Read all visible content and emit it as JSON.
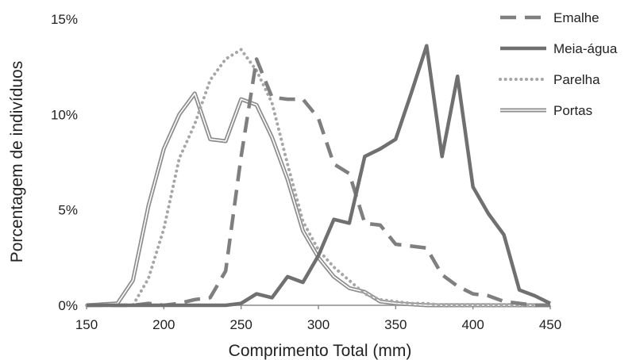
{
  "chart_data": {
    "type": "line",
    "title": "",
    "xlabel": "Comprimento Total (mm)",
    "ylabel": "Porcentagem de indivíduos",
    "xlim": [
      150,
      450
    ],
    "ylim": [
      0,
      15
    ],
    "xticks": [
      150,
      200,
      250,
      300,
      350,
      400,
      450
    ],
    "xtick_labels": [
      "150",
      "200",
      "250",
      "300",
      "350",
      "400",
      "450"
    ],
    "yticks": [
      0,
      5,
      10,
      15
    ],
    "ytick_labels": [
      "0%",
      "5%",
      "10%",
      "15%"
    ],
    "grid": false,
    "legend": {
      "position": "top-right"
    },
    "x": [
      150,
      160,
      170,
      180,
      190,
      200,
      210,
      220,
      230,
      240,
      250,
      260,
      270,
      280,
      290,
      300,
      310,
      320,
      330,
      340,
      350,
      360,
      370,
      380,
      390,
      400,
      410,
      420,
      430,
      440,
      450
    ],
    "series": [
      {
        "name": "Emalhe",
        "style": "dashed",
        "color": "#7f7f7f",
        "values": [
          0,
          0,
          0,
          0,
          0.1,
          0,
          0.1,
          0.3,
          0.4,
          1.8,
          7.8,
          12.9,
          10.9,
          10.8,
          10.8,
          9.8,
          7.4,
          6.9,
          4.3,
          4.2,
          3.2,
          3.1,
          3.0,
          1.6,
          1.0,
          0.6,
          0.5,
          0.2,
          0.1,
          0,
          0
        ]
      },
      {
        "name": "Meia-água",
        "style": "solid",
        "color": "#707070",
        "values": [
          0,
          0,
          0,
          0,
          0,
          0,
          0,
          0,
          0,
          0,
          0.1,
          0.6,
          0.4,
          1.5,
          1.2,
          2.6,
          4.5,
          4.3,
          7.8,
          8.2,
          8.7,
          11.1,
          13.6,
          7.8,
          12.0,
          6.2,
          4.8,
          3.7,
          0.8,
          0.5,
          0.1
        ]
      },
      {
        "name": "Parelha",
        "style": "dotted",
        "color": "#a6a6a6",
        "values": [
          0,
          0,
          0,
          0,
          1.4,
          4.0,
          7.7,
          9.5,
          11.8,
          12.9,
          13.4,
          12.3,
          10.6,
          7.4,
          4.4,
          2.9,
          2.0,
          1.3,
          0.6,
          0.3,
          0.2,
          0.1,
          0.1,
          0,
          0,
          0,
          0,
          0,
          0,
          0,
          0
        ]
      },
      {
        "name": "Portas",
        "style": "double",
        "color": "#8c8c8c",
        "values": [
          0,
          0.05,
          0.1,
          1.3,
          5.2,
          8.2,
          10.0,
          11.1,
          8.7,
          8.6,
          10.8,
          10.5,
          8.8,
          6.6,
          3.9,
          2.5,
          1.5,
          0.9,
          0.7,
          0.2,
          0.1,
          0.05,
          0,
          0,
          0,
          0,
          0,
          0,
          0,
          0,
          0
        ]
      }
    ]
  }
}
